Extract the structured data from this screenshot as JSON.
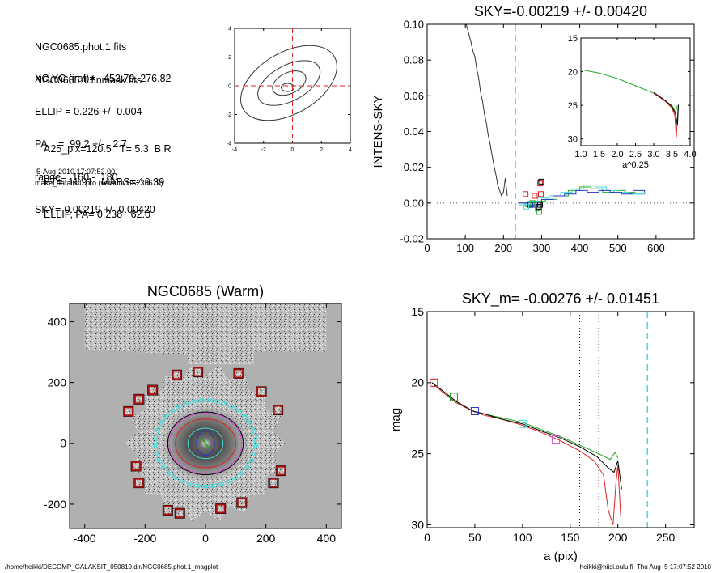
{
  "header": {
    "block1": [
      "NGC0685.phot.1.fits",
      "NGC0685.1.finmask.fits"
    ],
    "block2": [
      "XC,YC (iraf)=   453.79, 276.82",
      "ELLIP = 0.226 +/- 0.004",
      "PA    =  99.2 +/-   2.7",
      "range=  160.-  180.",
      "SKY=-0.00219 +/- 0.00420"
    ],
    "block3": [
      "A25_pix=120.5   T= 5.3  B R",
      "BT=  11.91   MABS=-19.39",
      "ELLIP, PA= 0.238   62.0"
    ],
    "date": "5-Aug-2010 17:07:52.00",
    "program": "make_datalist0.pro (version HS230610)"
  },
  "footer": {
    "left": "/home/heikki/DECOMP_GALAKSIT_050810.dir/NGC0685.phot.1_magplot",
    "right": "heikki@hiisi.oulu.fi  Thu Aug  5 17:07:52 2010"
  },
  "colors": {
    "cyan": "#44dddd",
    "red": "#dd2222",
    "green": "#22aa22",
    "blue": "#2233cc",
    "magenta": "#dd44dd",
    "image_bg": "#b0b0b0"
  },
  "chart_data": [
    {
      "type": "line",
      "panel": "contour",
      "xlim": [
        -4,
        4
      ],
      "ylim": [
        -4,
        4
      ],
      "xticks": [
        "-4",
        "-2",
        "0",
        "2",
        "4"
      ],
      "yticks": [
        "-4",
        "-2",
        "0",
        "2",
        "4"
      ],
      "marker_x": 0,
      "marker_y": 0
    },
    {
      "type": "line",
      "panel": "intensity",
      "title": "SKY=-0.00219 +/- 0.00420",
      "ylabel": "INTENS-SKY",
      "xlim": [
        0,
        700
      ],
      "ylim": [
        -0.02,
        0.1
      ],
      "xticks": [
        "0",
        "100",
        "200",
        "300",
        "400",
        "500",
        "600"
      ],
      "yticks": [
        "-0.02",
        "0.00",
        "0.02",
        "0.04",
        "0.06",
        "0.08",
        "0.10"
      ],
      "sky_line_x": 232,
      "profile": [
        [
          95,
          0.105
        ],
        [
          105,
          0.098
        ],
        [
          115,
          0.09
        ],
        [
          120,
          0.085
        ],
        [
          125,
          0.082
        ],
        [
          130,
          0.075
        ],
        [
          135,
          0.07
        ],
        [
          140,
          0.062
        ],
        [
          145,
          0.057
        ],
        [
          150,
          0.05
        ],
        [
          155,
          0.045
        ],
        [
          160,
          0.038
        ],
        [
          165,
          0.033
        ],
        [
          170,
          0.027
        ],
        [
          175,
          0.021
        ],
        [
          180,
          0.016
        ],
        [
          185,
          0.01
        ],
        [
          190,
          0.007
        ],
        [
          195,
          0.004
        ],
        [
          200,
          0.006
        ],
        [
          205,
          0.014
        ],
        [
          210,
          0.004
        ]
      ],
      "series": [
        {
          "color": "green",
          "steps": [
            [
              240,
              0.0
            ],
            [
              258,
              -0.002
            ],
            [
              280,
              0.001
            ],
            [
              310,
              0.002
            ],
            [
              340,
              0.004
            ],
            [
              370,
              0.007
            ],
            [
              400,
              0.009
            ],
            [
              430,
              0.008
            ],
            [
              460,
              0.006
            ],
            [
              490,
              0.007
            ],
            [
              520,
              0.006
            ],
            [
              545,
              0.005
            ],
            [
              570,
              0.006
            ]
          ]
        },
        {
          "color": "cyan",
          "steps": [
            [
              240,
              -0.001
            ],
            [
              262,
              0.001
            ],
            [
              290,
              0.003
            ],
            [
              320,
              0.004
            ],
            [
              350,
              0.006
            ],
            [
              380,
              0.008
            ],
            [
              410,
              0.01
            ],
            [
              440,
              0.009
            ],
            [
              470,
              0.007
            ],
            [
              500,
              0.006
            ],
            [
              530,
              0.005
            ],
            [
              570,
              0.006
            ]
          ]
        },
        {
          "color": "blue",
          "steps": [
            [
              240,
              0.0
            ],
            [
              265,
              -0.001
            ],
            [
              300,
              0.002
            ],
            [
              330,
              0.004
            ],
            [
              360,
              0.005
            ],
            [
              390,
              0.007
            ],
            [
              420,
              0.006
            ],
            [
              450,
              0.007
            ],
            [
              480,
              0.006
            ],
            [
              510,
              0.005
            ],
            [
              540,
              0.007
            ],
            [
              570,
              0.006
            ]
          ]
        }
      ],
      "boxes": [
        {
          "x": 258,
          "y": 0.005,
          "color": "red"
        },
        {
          "x": 282,
          "y": 0.004,
          "color": "red"
        },
        {
          "x": 296,
          "y": 0.011,
          "color": "red"
        },
        {
          "x": 298,
          "y": 0.005,
          "color": "red"
        },
        {
          "x": 299,
          "y": 0.012,
          "color": "black"
        },
        {
          "x": 270,
          "y": -0.001,
          "color": "black"
        },
        {
          "x": 276,
          "y": 0.0,
          "color": "green"
        },
        {
          "x": 290,
          "y": -0.003,
          "color": "green"
        },
        {
          "x": 294,
          "y": -0.005,
          "color": "green"
        },
        {
          "x": 283,
          "y": -0.001,
          "color": "blue"
        },
        {
          "x": 293,
          "y": -0.002,
          "color": "black"
        },
        {
          "x": 296,
          "y": -0.001,
          "color": "black"
        },
        {
          "x": 260,
          "y": -0.002,
          "color": "cyan"
        }
      ]
    },
    {
      "type": "line",
      "panel": "inset",
      "xlabel": "a^0.25",
      "xlim": [
        1.0,
        4.0
      ],
      "ylim": [
        31,
        15
      ],
      "xticks": [
        "1.0",
        "1.5",
        "2.0",
        "2.5",
        "3.0",
        "3.5",
        "4.0"
      ],
      "yticks": [
        "15",
        "20",
        "25",
        "30"
      ],
      "series": [
        {
          "color": "green",
          "points": [
            [
              1.0,
              19.7
            ],
            [
              1.2,
              19.9
            ],
            [
              1.5,
              20.2
            ],
            [
              2.0,
              21.0
            ],
            [
              2.5,
              22.1
            ],
            [
              3.0,
              23.2
            ],
            [
              3.3,
              24.3
            ],
            [
              3.5,
              25.0
            ],
            [
              3.6,
              26.0
            ],
            [
              3.65,
              25.0
            ]
          ]
        },
        {
          "color": "red",
          "points": [
            [
              3.0,
              23.2
            ],
            [
              3.3,
              24.3
            ],
            [
              3.5,
              25.4
            ],
            [
              3.58,
              26.5
            ],
            [
              3.62,
              29.8
            ],
            [
              3.67,
              25.3
            ]
          ]
        },
        {
          "color": "black",
          "points": [
            [
              3.0,
              23.1
            ],
            [
              3.3,
              24.2
            ],
            [
              3.5,
              25.2
            ],
            [
              3.6,
              26.3
            ],
            [
              3.65,
              28.0
            ],
            [
              3.68,
              24.9
            ]
          ]
        }
      ]
    },
    {
      "type": "heatmap",
      "panel": "image",
      "title": "NGC0685 (Warm)",
      "xlim": [
        -450,
        450
      ],
      "ylim": [
        -280,
        460
      ],
      "xticks": [
        "-400",
        "-200",
        "0",
        "200",
        "400"
      ],
      "yticks": [
        "-200",
        "0",
        "200",
        "400"
      ],
      "ellipses": [
        {
          "rx": 170,
          "ry": 145,
          "color": "cyan",
          "dashed": true
        },
        {
          "rx": 162,
          "ry": 138,
          "color": "cyan",
          "dashed": false
        },
        {
          "rx": 125,
          "ry": 103,
          "color": "black",
          "dashed": false
        },
        {
          "rx": 120,
          "ry": 99,
          "color": "magenta",
          "dashed": false
        },
        {
          "rx": 100,
          "ry": 80,
          "color": "red",
          "dashed": false
        },
        {
          "rx": 58,
          "ry": 50,
          "color": "cyan",
          "dashed": false
        },
        {
          "rx": 30,
          "ry": 40,
          "color": "blue",
          "dashed": false
        }
      ],
      "mask_boxes": [
        [
          -95,
          225
        ],
        [
          -25,
          235
        ],
        [
          110,
          230
        ],
        [
          -175,
          175
        ],
        [
          -220,
          145
        ],
        [
          -255,
          105
        ],
        [
          185,
          170
        ],
        [
          240,
          110
        ],
        [
          -230,
          -75
        ],
        [
          -220,
          -130
        ],
        [
          250,
          -90
        ],
        [
          225,
          -130
        ],
        [
          -125,
          -220
        ],
        [
          -85,
          -230
        ],
        [
          50,
          -215
        ],
        [
          120,
          -195
        ]
      ]
    },
    {
      "type": "line",
      "panel": "magnitude",
      "title": "SKY_m= -0.00276 +/- 0.01451",
      "xlabel": "a (pix)",
      "ylabel": "mag",
      "xlim": [
        0,
        280
      ],
      "ylim": [
        30.2,
        15
      ],
      "xticks": [
        "0",
        "50",
        "100",
        "150",
        "200",
        "250"
      ],
      "yticks": [
        "15",
        "20",
        "25",
        "30"
      ],
      "vlines": [
        {
          "x": 160,
          "color": "black",
          "dashed": "dot"
        },
        {
          "x": 180,
          "color": "black",
          "dashed": "dot"
        },
        {
          "x": 231,
          "color": "cyan",
          "dashed": "dash"
        }
      ],
      "series": [
        {
          "color": "green",
          "points": [
            [
              5,
              20.0
            ],
            [
              15,
              20.5
            ],
            [
              30,
              21.3
            ],
            [
              48,
              22.0
            ],
            [
              60,
              22.2
            ],
            [
              80,
              22.5
            ],
            [
              100,
              22.8
            ],
            [
              120,
              23.3
            ],
            [
              140,
              23.8
            ],
            [
              160,
              24.4
            ],
            [
              180,
              25.0
            ],
            [
              192,
              25.4
            ],
            [
              197,
              24.9
            ],
            [
              200,
              25.3
            ]
          ]
        },
        {
          "color": "red",
          "points": [
            [
              5,
              20.0
            ],
            [
              15,
              20.6
            ],
            [
              30,
              21.4
            ],
            [
              48,
              22.0
            ],
            [
              60,
              22.3
            ],
            [
              80,
              22.6
            ],
            [
              100,
              23.0
            ],
            [
              120,
              23.5
            ],
            [
              140,
              24.1
            ],
            [
              160,
              24.8
            ],
            [
              175,
              25.5
            ],
            [
              185,
              26.5
            ],
            [
              190,
              29.0
            ],
            [
              195,
              30.0
            ],
            [
              198,
              27.0
            ],
            [
              200,
              25.8
            ],
            [
              203,
              29.5
            ]
          ]
        },
        {
          "color": "black",
          "points": [
            [
              5,
              20.0
            ],
            [
              15,
              20.5
            ],
            [
              30,
              21.3
            ],
            [
              48,
              22.0
            ],
            [
              60,
              22.2
            ],
            [
              80,
              22.6
            ],
            [
              100,
              22.9
            ],
            [
              120,
              23.4
            ],
            [
              140,
              23.9
            ],
            [
              160,
              24.5
            ],
            [
              178,
              25.2
            ],
            [
              190,
              26.0
            ],
            [
              196,
              26.3
            ],
            [
              200,
              25.5
            ],
            [
              204,
              27.5
            ]
          ]
        }
      ],
      "markers": [
        {
          "x": 7,
          "y": 20.0,
          "color": "red"
        },
        {
          "x": 28,
          "y": 21.0,
          "color": "green"
        },
        {
          "x": 50,
          "y": 22.0,
          "color": "blue"
        },
        {
          "x": 100,
          "y": 22.9,
          "color": "cyan"
        },
        {
          "x": 135,
          "y": 24.0,
          "color": "magenta"
        }
      ]
    }
  ]
}
